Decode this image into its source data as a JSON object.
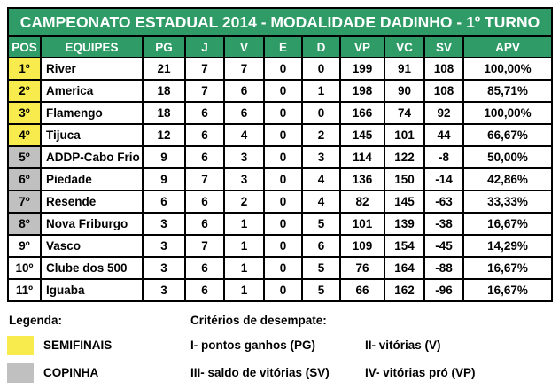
{
  "title": "CAMPEONATO ESTADUAL 2014 - MODALIDADE DADINHO - 1º TURNO",
  "table": {
    "columns": [
      "POS",
      "EQUIPES",
      "PG",
      "J",
      "V",
      "E",
      "D",
      "VP",
      "VC",
      "SV",
      "APV"
    ],
    "rows": [
      {
        "pos": "1º",
        "team": "River",
        "pg": "21",
        "j": "7",
        "v": "7",
        "e": "0",
        "d": "0",
        "vp": "199",
        "vc": "91",
        "sv": "108",
        "apv": "100,00%",
        "zone": "semifinais"
      },
      {
        "pos": "2º",
        "team": "America",
        "pg": "18",
        "j": "7",
        "v": "6",
        "e": "0",
        "d": "1",
        "vp": "198",
        "vc": "90",
        "sv": "108",
        "apv": "85,71%",
        "zone": "semifinais"
      },
      {
        "pos": "3º",
        "team": "Flamengo",
        "pg": "18",
        "j": "6",
        "v": "6",
        "e": "0",
        "d": "0",
        "vp": "166",
        "vc": "74",
        "sv": "92",
        "apv": "100,00%",
        "zone": "semifinais"
      },
      {
        "pos": "4º",
        "team": "Tijuca",
        "pg": "12",
        "j": "6",
        "v": "4",
        "e": "0",
        "d": "2",
        "vp": "145",
        "vc": "101",
        "sv": "44",
        "apv": "66,67%",
        "zone": "semifinais"
      },
      {
        "pos": "5º",
        "team": "ADDP-Cabo Frio",
        "pg": "9",
        "j": "6",
        "v": "3",
        "e": "0",
        "d": "3",
        "vp": "114",
        "vc": "122",
        "sv": "-8",
        "apv": "50,00%",
        "zone": "copinha"
      },
      {
        "pos": "6º",
        "team": "Piedade",
        "pg": "9",
        "j": "7",
        "v": "3",
        "e": "0",
        "d": "4",
        "vp": "136",
        "vc": "150",
        "sv": "-14",
        "apv": "42,86%",
        "zone": "copinha"
      },
      {
        "pos": "7º",
        "team": "Resende",
        "pg": "6",
        "j": "6",
        "v": "2",
        "e": "0",
        "d": "4",
        "vp": "82",
        "vc": "145",
        "sv": "-63",
        "apv": "33,33%",
        "zone": "copinha"
      },
      {
        "pos": "8º",
        "team": "Nova Friburgo",
        "pg": "3",
        "j": "6",
        "v": "1",
        "e": "0",
        "d": "5",
        "vp": "101",
        "vc": "139",
        "sv": "-38",
        "apv": "16,67%",
        "zone": "copinha"
      },
      {
        "pos": "9º",
        "team": "Vasco",
        "pg": "3",
        "j": "7",
        "v": "1",
        "e": "0",
        "d": "6",
        "vp": "109",
        "vc": "154",
        "sv": "-45",
        "apv": "14,29%",
        "zone": "none"
      },
      {
        "pos": "10º",
        "team": "Clube dos 500",
        "pg": "3",
        "j": "6",
        "v": "1",
        "e": "0",
        "d": "5",
        "vp": "76",
        "vc": "164",
        "sv": "-88",
        "apv": "16,67%",
        "zone": "none"
      },
      {
        "pos": "11º",
        "team": "Iguaba",
        "pg": "3",
        "j": "6",
        "v": "1",
        "e": "0",
        "d": "5",
        "vp": "66",
        "vc": "162",
        "sv": "-96",
        "apv": "16,67%",
        "zone": "none"
      }
    ]
  },
  "legend": {
    "heading": "Legenda:",
    "items": [
      {
        "label": "SEMIFINAIS",
        "color": "#f7eb4d"
      },
      {
        "label": "COPINHA",
        "color": "#c0c0c0"
      }
    ]
  },
  "criteria": {
    "heading": "Critérios de desempate:",
    "rows": [
      [
        "I- pontos ganhos (PG)",
        "II- vitórias (V)"
      ],
      [
        "III- saldo de vitórias (SV)",
        "IV- vitórias pró (VP)"
      ]
    ]
  },
  "colors": {
    "header_green": "#2f9b66",
    "semifinais_yellow": "#f7eb4d",
    "copinha_gray": "#c0c0c0",
    "border_black": "#000000"
  }
}
